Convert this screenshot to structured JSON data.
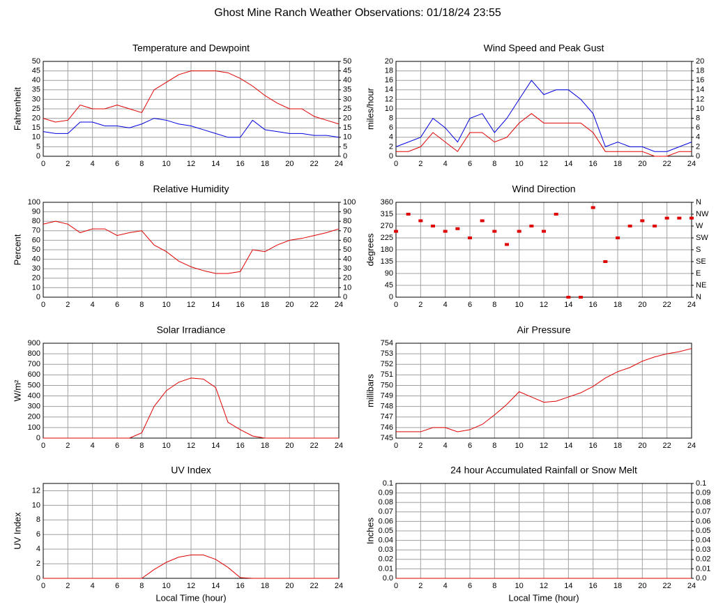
{
  "page_title": "Ghost Mine Ranch Weather Observations: 01/18/24 23:55",
  "chart_data": [
    {
      "type": "line",
      "title": "Temperature and Dewpoint",
      "y_label": "Fahrenheit",
      "grid": true,
      "xlim": [
        0,
        24
      ],
      "xticks": [
        0,
        2,
        4,
        6,
        8,
        10,
        12,
        14,
        16,
        18,
        20,
        22,
        24
      ],
      "ylim": [
        0,
        50
      ],
      "yticks": [
        0,
        5,
        10,
        15,
        20,
        25,
        30,
        35,
        40,
        45,
        50
      ],
      "y2lim": [
        0,
        50
      ],
      "y2ticks": [
        0,
        5,
        10,
        15,
        20,
        25,
        30,
        35,
        40,
        45,
        50
      ],
      "x": [
        0,
        1,
        2,
        3,
        4,
        5,
        6,
        7,
        8,
        9,
        10,
        11,
        12,
        13,
        14,
        15,
        16,
        17,
        18,
        19,
        20,
        21,
        22,
        23,
        24
      ],
      "series": [
        {
          "color": "#e00000",
          "values": [
            20,
            18,
            19,
            27,
            25,
            25,
            27,
            25,
            23,
            35,
            39,
            43,
            45,
            45,
            45,
            44,
            41,
            37,
            32,
            28,
            25,
            25,
            21,
            19,
            17
          ]
        },
        {
          "color": "#0000e0",
          "values": [
            13,
            12,
            12,
            18,
            18,
            16,
            16,
            15,
            17,
            20,
            19,
            17,
            16,
            14,
            12,
            10,
            10,
            19,
            14,
            13,
            12,
            12,
            11,
            11,
            10
          ]
        }
      ]
    },
    {
      "type": "line",
      "title": "Wind Speed and Peak Gust",
      "y_label": "miles/hour",
      "grid": true,
      "xlim": [
        0,
        24
      ],
      "xticks": [
        0,
        2,
        4,
        6,
        8,
        10,
        12,
        14,
        16,
        18,
        20,
        22,
        24
      ],
      "ylim": [
        0,
        20
      ],
      "yticks": [
        0,
        2,
        4,
        6,
        8,
        10,
        12,
        14,
        16,
        18,
        20
      ],
      "y2lim": [
        0,
        20
      ],
      "y2ticks": [
        0,
        2,
        4,
        6,
        8,
        10,
        12,
        14,
        16,
        18,
        20
      ],
      "x": [
        0,
        1,
        2,
        3,
        4,
        5,
        6,
        7,
        8,
        9,
        10,
        11,
        12,
        13,
        14,
        15,
        16,
        17,
        18,
        19,
        20,
        21,
        22,
        23,
        24
      ],
      "series": [
        {
          "color": "#0000e0",
          "values": [
            2,
            3,
            4,
            8,
            6,
            3,
            8,
            9,
            5,
            8,
            12,
            16,
            13,
            14,
            14,
            12,
            9,
            2,
            3,
            2,
            2,
            1,
            1,
            2,
            3
          ]
        },
        {
          "color": "#e00000",
          "values": [
            1,
            1,
            2,
            5,
            3,
            1,
            5,
            5,
            3,
            4,
            7,
            9,
            7,
            7,
            7,
            7,
            5,
            1,
            1,
            1,
            1,
            0,
            0,
            1,
            1
          ]
        }
      ]
    },
    {
      "type": "line",
      "title": "Relative Humidity",
      "y_label": "Percent",
      "grid": true,
      "xlim": [
        0,
        24
      ],
      "xticks": [
        0,
        2,
        4,
        6,
        8,
        10,
        12,
        14,
        16,
        18,
        20,
        22,
        24
      ],
      "ylim": [
        0,
        100
      ],
      "yticks": [
        0,
        10,
        20,
        30,
        40,
        50,
        60,
        70,
        80,
        90,
        100
      ],
      "y2lim": [
        0,
        100
      ],
      "y2ticks": [
        0,
        10,
        20,
        30,
        40,
        50,
        60,
        70,
        80,
        90,
        100
      ],
      "x": [
        0,
        1,
        2,
        3,
        4,
        5,
        6,
        7,
        8,
        9,
        10,
        11,
        12,
        13,
        14,
        15,
        16,
        17,
        18,
        19,
        20,
        21,
        22,
        23,
        24
      ],
      "series": [
        {
          "color": "#e00000",
          "values": [
            77,
            80,
            77,
            68,
            72,
            72,
            65,
            68,
            70,
            55,
            48,
            38,
            32,
            28,
            25,
            25,
            27,
            50,
            48,
            55,
            60,
            62,
            65,
            68,
            72
          ]
        }
      ]
    },
    {
      "type": "scatter",
      "title": "Wind Direction",
      "y_label": "degrees",
      "grid": true,
      "xlim": [
        0,
        24
      ],
      "xticks": [
        0,
        2,
        4,
        6,
        8,
        10,
        12,
        14,
        16,
        18,
        20,
        22,
        24
      ],
      "ylim": [
        0,
        360
      ],
      "yticks": [
        0,
        45,
        90,
        135,
        180,
        225,
        270,
        315,
        360
      ],
      "y2lim": [
        0,
        360
      ],
      "y2ticks": [
        {
          "value": 0,
          "label": "N"
        },
        {
          "value": 45,
          "label": "NE"
        },
        {
          "value": 90,
          "label": "E"
        },
        {
          "value": 135,
          "label": "SE"
        },
        {
          "value": 180,
          "label": "S"
        },
        {
          "value": 225,
          "label": "SW"
        },
        {
          "value": 270,
          "label": "W"
        },
        {
          "value": 315,
          "label": "NW"
        },
        {
          "value": 360,
          "label": "N"
        }
      ],
      "x": [
        0,
        1,
        2,
        3,
        4,
        5,
        6,
        7,
        8,
        9,
        10,
        11,
        12,
        13,
        14,
        15,
        16,
        17,
        18,
        19,
        20,
        21,
        22,
        23,
        24
      ],
      "series": [
        {
          "color": "#e00000",
          "values": [
            250,
            315,
            290,
            270,
            250,
            260,
            225,
            290,
            250,
            200,
            250,
            270,
            250,
            315,
            0,
            0,
            340,
            135,
            225,
            270,
            290,
            270,
            300,
            300,
            300
          ]
        }
      ]
    },
    {
      "type": "line",
      "title": "Solar Irradiance",
      "y_label": "W/m²",
      "grid": true,
      "xlim": [
        0,
        24
      ],
      "xticks": [
        0,
        2,
        4,
        6,
        8,
        10,
        12,
        14,
        16,
        18,
        20,
        22,
        24
      ],
      "ylim": [
        0,
        900
      ],
      "yticks": [
        0,
        100,
        200,
        300,
        400,
        500,
        600,
        700,
        800,
        900
      ],
      "x": [
        0,
        1,
        2,
        3,
        4,
        5,
        6,
        7,
        8,
        9,
        10,
        11,
        12,
        13,
        14,
        15,
        16,
        17,
        18,
        19,
        20,
        21,
        22,
        23,
        24
      ],
      "series": [
        {
          "color": "#e00000",
          "values": [
            0,
            0,
            0,
            0,
            0,
            0,
            0,
            0,
            50,
            300,
            450,
            530,
            570,
            560,
            480,
            150,
            80,
            20,
            0,
            0,
            0,
            0,
            0,
            0,
            0
          ]
        }
      ]
    },
    {
      "type": "line",
      "title": "Air Pressure",
      "y_label": "millibars",
      "grid": true,
      "xlim": [
        0,
        24
      ],
      "xticks": [
        0,
        2,
        4,
        6,
        8,
        10,
        12,
        14,
        16,
        18,
        20,
        22,
        24
      ],
      "ylim": [
        745,
        754
      ],
      "yticks": [
        745,
        746,
        747,
        748,
        749,
        750,
        751,
        752,
        753,
        754
      ],
      "x": [
        0,
        1,
        2,
        3,
        4,
        5,
        6,
        7,
        8,
        9,
        10,
        11,
        12,
        13,
        14,
        15,
        16,
        17,
        18,
        19,
        20,
        21,
        22,
        23,
        24
      ],
      "series": [
        {
          "color": "#e00000",
          "values": [
            745.6,
            745.6,
            745.6,
            746.0,
            746.0,
            745.6,
            745.8,
            746.3,
            747.2,
            748.2,
            749.4,
            748.9,
            748.4,
            748.5,
            748.9,
            749.3,
            749.9,
            750.7,
            751.3,
            751.7,
            752.3,
            752.7,
            753.0,
            753.2,
            753.5
          ]
        }
      ]
    },
    {
      "type": "line",
      "title": "UV Index",
      "y_label": "UV Index",
      "x_label": "Local Time (hour)",
      "grid": true,
      "xlim": [
        0,
        24
      ],
      "xticks": [
        0,
        2,
        4,
        6,
        8,
        10,
        12,
        14,
        16,
        18,
        20,
        22,
        24
      ],
      "ylim": [
        0,
        13
      ],
      "yticks": [
        0,
        2,
        4,
        6,
        8,
        10,
        12
      ],
      "x": [
        0,
        1,
        2,
        3,
        4,
        5,
        6,
        7,
        8,
        9,
        10,
        11,
        12,
        13,
        14,
        15,
        16,
        17,
        18,
        19,
        20,
        21,
        22,
        23,
        24
      ],
      "series": [
        {
          "color": "#e00000",
          "values": [
            0,
            0,
            0,
            0,
            0,
            0,
            0,
            0,
            0,
            1.2,
            2.2,
            2.9,
            3.2,
            3.2,
            2.6,
            1.5,
            0.1,
            0,
            0,
            0,
            0,
            0,
            0,
            0,
            0
          ]
        }
      ]
    },
    {
      "type": "line",
      "title": "24 hour Accumulated Rainfall or Snow Melt",
      "y_label": "Inches",
      "x_label": "Local Time (hour)",
      "grid": true,
      "xlim": [
        0,
        24
      ],
      "xticks": [
        0,
        2,
        4,
        6,
        8,
        10,
        12,
        14,
        16,
        18,
        20,
        22,
        24
      ],
      "ylim": [
        0,
        0.1
      ],
      "yticks": [
        {
          "value": 0,
          "label": "0.0"
        },
        0.01,
        0.02,
        0.03,
        0.04,
        0.05,
        0.06,
        0.07,
        0.08,
        0.09,
        0.1
      ],
      "y2lim": [
        0,
        0.1
      ],
      "y2ticks": [
        {
          "value": 0,
          "label": "0.0"
        },
        0.01,
        0.02,
        0.03,
        0.04,
        0.05,
        0.06,
        0.07,
        0.08,
        0.09,
        0.1
      ],
      "x": [
        0,
        1,
        2,
        3,
        4,
        5,
        6,
        7,
        8,
        9,
        10,
        11,
        12,
        13,
        14,
        15,
        16,
        17,
        18,
        19,
        20,
        21,
        22,
        23,
        24
      ],
      "series": [
        {
          "color": "#e00000",
          "values": [
            0,
            0,
            0,
            0,
            0,
            0,
            0,
            0,
            0,
            0,
            0,
            0,
            0,
            0,
            0,
            0,
            0,
            0,
            0,
            0,
            0,
            0,
            0,
            0,
            0
          ]
        }
      ]
    }
  ]
}
